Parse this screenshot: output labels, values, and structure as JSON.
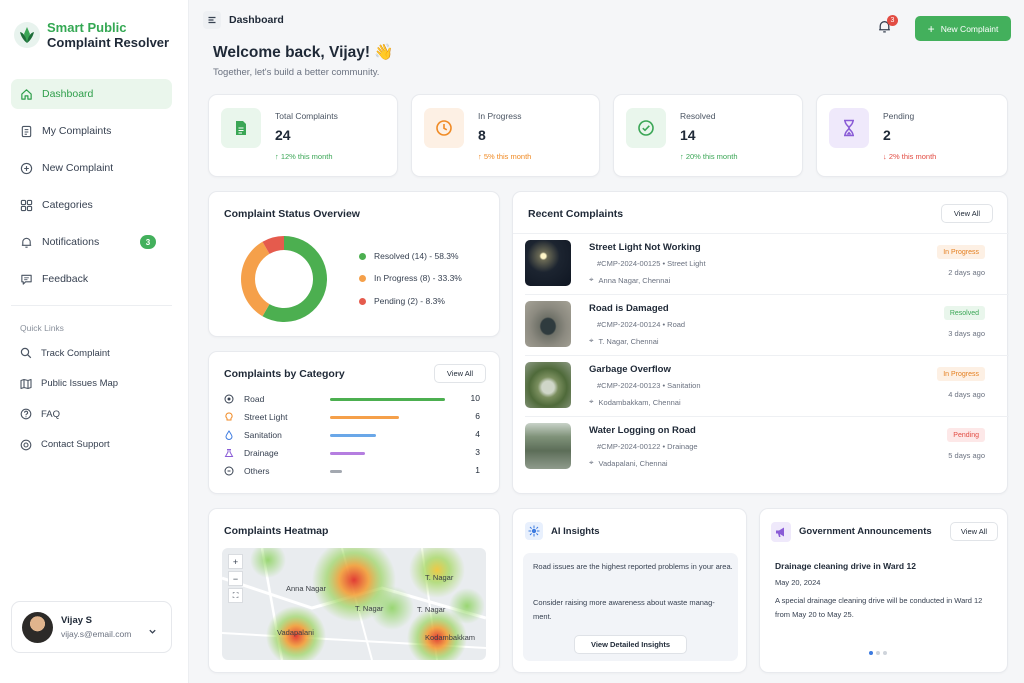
{
  "brand": {
    "line1": "Smart Public",
    "line2": "Complaint Resolver",
    "accent": "#43b05c"
  },
  "nav": [
    {
      "label": "Dashboard",
      "icon": "home-icon",
      "active": true
    },
    {
      "label": "My Complaints",
      "icon": "document-icon"
    },
    {
      "label": "New Complaint",
      "icon": "plus-circle-icon"
    },
    {
      "label": "Categories",
      "icon": "grid-icon"
    },
    {
      "label": "Notifications",
      "icon": "bell-icon",
      "badge": "3"
    },
    {
      "label": "Feedback",
      "icon": "message-icon"
    }
  ],
  "quick_links": {
    "title": "Quick Links",
    "items": [
      {
        "label": "Track Complaint",
        "icon": "search-icon"
      },
      {
        "label": "Public Issues Map",
        "icon": "map-icon"
      },
      {
        "label": "FAQ",
        "icon": "help-icon"
      },
      {
        "label": "Contact Support",
        "icon": "support-icon"
      }
    ]
  },
  "user": {
    "name": "Vijay S",
    "email": "vijay.s@email.com"
  },
  "header": {
    "title": "Dashboard",
    "notification_count": "3",
    "new_button": "New Complaint"
  },
  "welcome": {
    "title": "Welcome back, Vijay! 👋",
    "subtitle": "Together, let's build a better community."
  },
  "stats": [
    {
      "label": "Total Complaints",
      "value": "24",
      "trend": "↑ 12% this month",
      "color": "#3aa655",
      "bg": "#e9f6ec"
    },
    {
      "label": "In Progress",
      "value": "8",
      "trend": "↑ 5% this month",
      "color": "#f08a24",
      "bg": "#fdf0e4"
    },
    {
      "label": "Resolved",
      "value": "14",
      "trend": "↑ 20% this month",
      "color": "#3aa655",
      "bg": "#e9f6ec"
    },
    {
      "label": "Pending",
      "value": "2",
      "trend": "↓ 2% this month",
      "color": "#e24c43",
      "bg": "#efe9fb"
    }
  ],
  "status_overview": {
    "title": "Complaint Status Overview",
    "legend": [
      {
        "label": "Resolved (14) - 58.3%",
        "color": "#4caf50"
      },
      {
        "label": "In Progress (8) - 33.3%",
        "color": "#f5a04a"
      },
      {
        "label": "Pending (2) - 8.3%",
        "color": "#e55b4d"
      }
    ]
  },
  "chart_data": {
    "type": "pie",
    "title": "Complaint Status Overview",
    "categories": [
      "Resolved",
      "In Progress",
      "Pending"
    ],
    "values": [
      14,
      8,
      2
    ],
    "colors": [
      "#4caf50",
      "#f5a04a",
      "#e55b4d"
    ],
    "legend": "right"
  },
  "categories": {
    "title": "Complaints by Category",
    "view_all": "View All",
    "max": 10,
    "items": [
      {
        "label": "Road",
        "count": 10,
        "count_text": "10",
        "color": "#4caf50",
        "icon": "road-icon"
      },
      {
        "label": "Street Light",
        "count": 6,
        "count_text": "6",
        "color": "#f5a04a",
        "icon": "bulb-icon"
      },
      {
        "label": "Sanitation",
        "count": 4,
        "count_text": "4",
        "color": "#6aa7e8",
        "icon": "drop-icon"
      },
      {
        "label": "Drainage",
        "count": 3,
        "count_text": "3",
        "color": "#b57ee0",
        "icon": "drainage-icon"
      },
      {
        "label": "Others",
        "count": 1,
        "count_text": "1",
        "color": "#a3a8b0",
        "icon": "more-icon"
      }
    ]
  },
  "recent": {
    "title": "Recent Complaints",
    "view_all": "View All",
    "items": [
      {
        "title": "Street Light Not Working",
        "meta": "#CMP-2024-00125  •  Street Light",
        "location": "Anna Nagar, Chennai",
        "status": "In Progress",
        "time": "2 days ago"
      },
      {
        "title": "Road is Damaged",
        "meta": "#CMP-2024-00124  •  Road",
        "location": "T. Nagar, Chennai",
        "status": "Resolved",
        "time": "3 days ago"
      },
      {
        "title": "Garbage Overflow",
        "meta": "#CMP-2024-00123  •  Sanitation",
        "location": "Kodambakkam, Chennai",
        "status": "In Progress",
        "time": "4 days ago"
      },
      {
        "title": "Water Logging on Road",
        "meta": "#CMP-2024-00122  •  Drainage",
        "location": "Vadapalani, Chennai",
        "status": "Pending",
        "time": "5 days ago"
      }
    ]
  },
  "heatmap": {
    "title": "Complaints Heatmap",
    "labels": [
      "Anna Nagar",
      "T. Nagar",
      "T. Nagar",
      "T. Nagar",
      "Vadapalani",
      "Kodambakkam"
    ],
    "controls": [
      "+",
      "−",
      "⛶"
    ]
  },
  "ai": {
    "title": "AI Insights",
    "line1": "Road issues are the highest reported problems in your area.",
    "line2": "Consider raising more awareness about waste management.",
    "line2_visible": "Consider raising more awareness about waste manag-",
    "line2_cont": "ment.",
    "button": "View Detailed Insights"
  },
  "announcements": {
    "title": "Government Announcements",
    "view_all": "View All",
    "item_title": "Drainage cleaning drive in Ward 12",
    "item_date": "May 20, 2024",
    "item_body": "A special drainage cleaning drive will be conducted in Ward 12 from May 20 to May 25."
  }
}
